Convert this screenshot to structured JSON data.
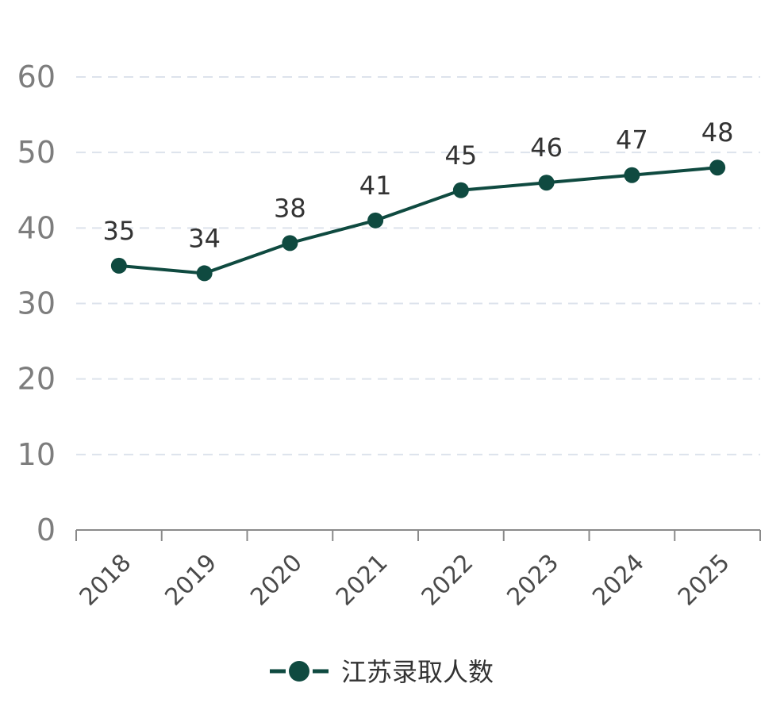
{
  "chart_data": {
    "type": "line",
    "title": "",
    "xlabel": "",
    "ylabel": "",
    "categories": [
      "2018",
      "2019",
      "2020",
      "2021",
      "2022",
      "2023",
      "2024",
      "2025"
    ],
    "series": [
      {
        "name": "江苏录取人数",
        "values": [
          35,
          34,
          38,
          41,
          45,
          46,
          47,
          48
        ],
        "color": "#0f4a40"
      }
    ],
    "ylim": [
      0,
      60
    ],
    "yticks": [
      0,
      10,
      20,
      30,
      40,
      50,
      60
    ],
    "grid": true,
    "legend_position": "bottom-center",
    "data_labels": true
  }
}
